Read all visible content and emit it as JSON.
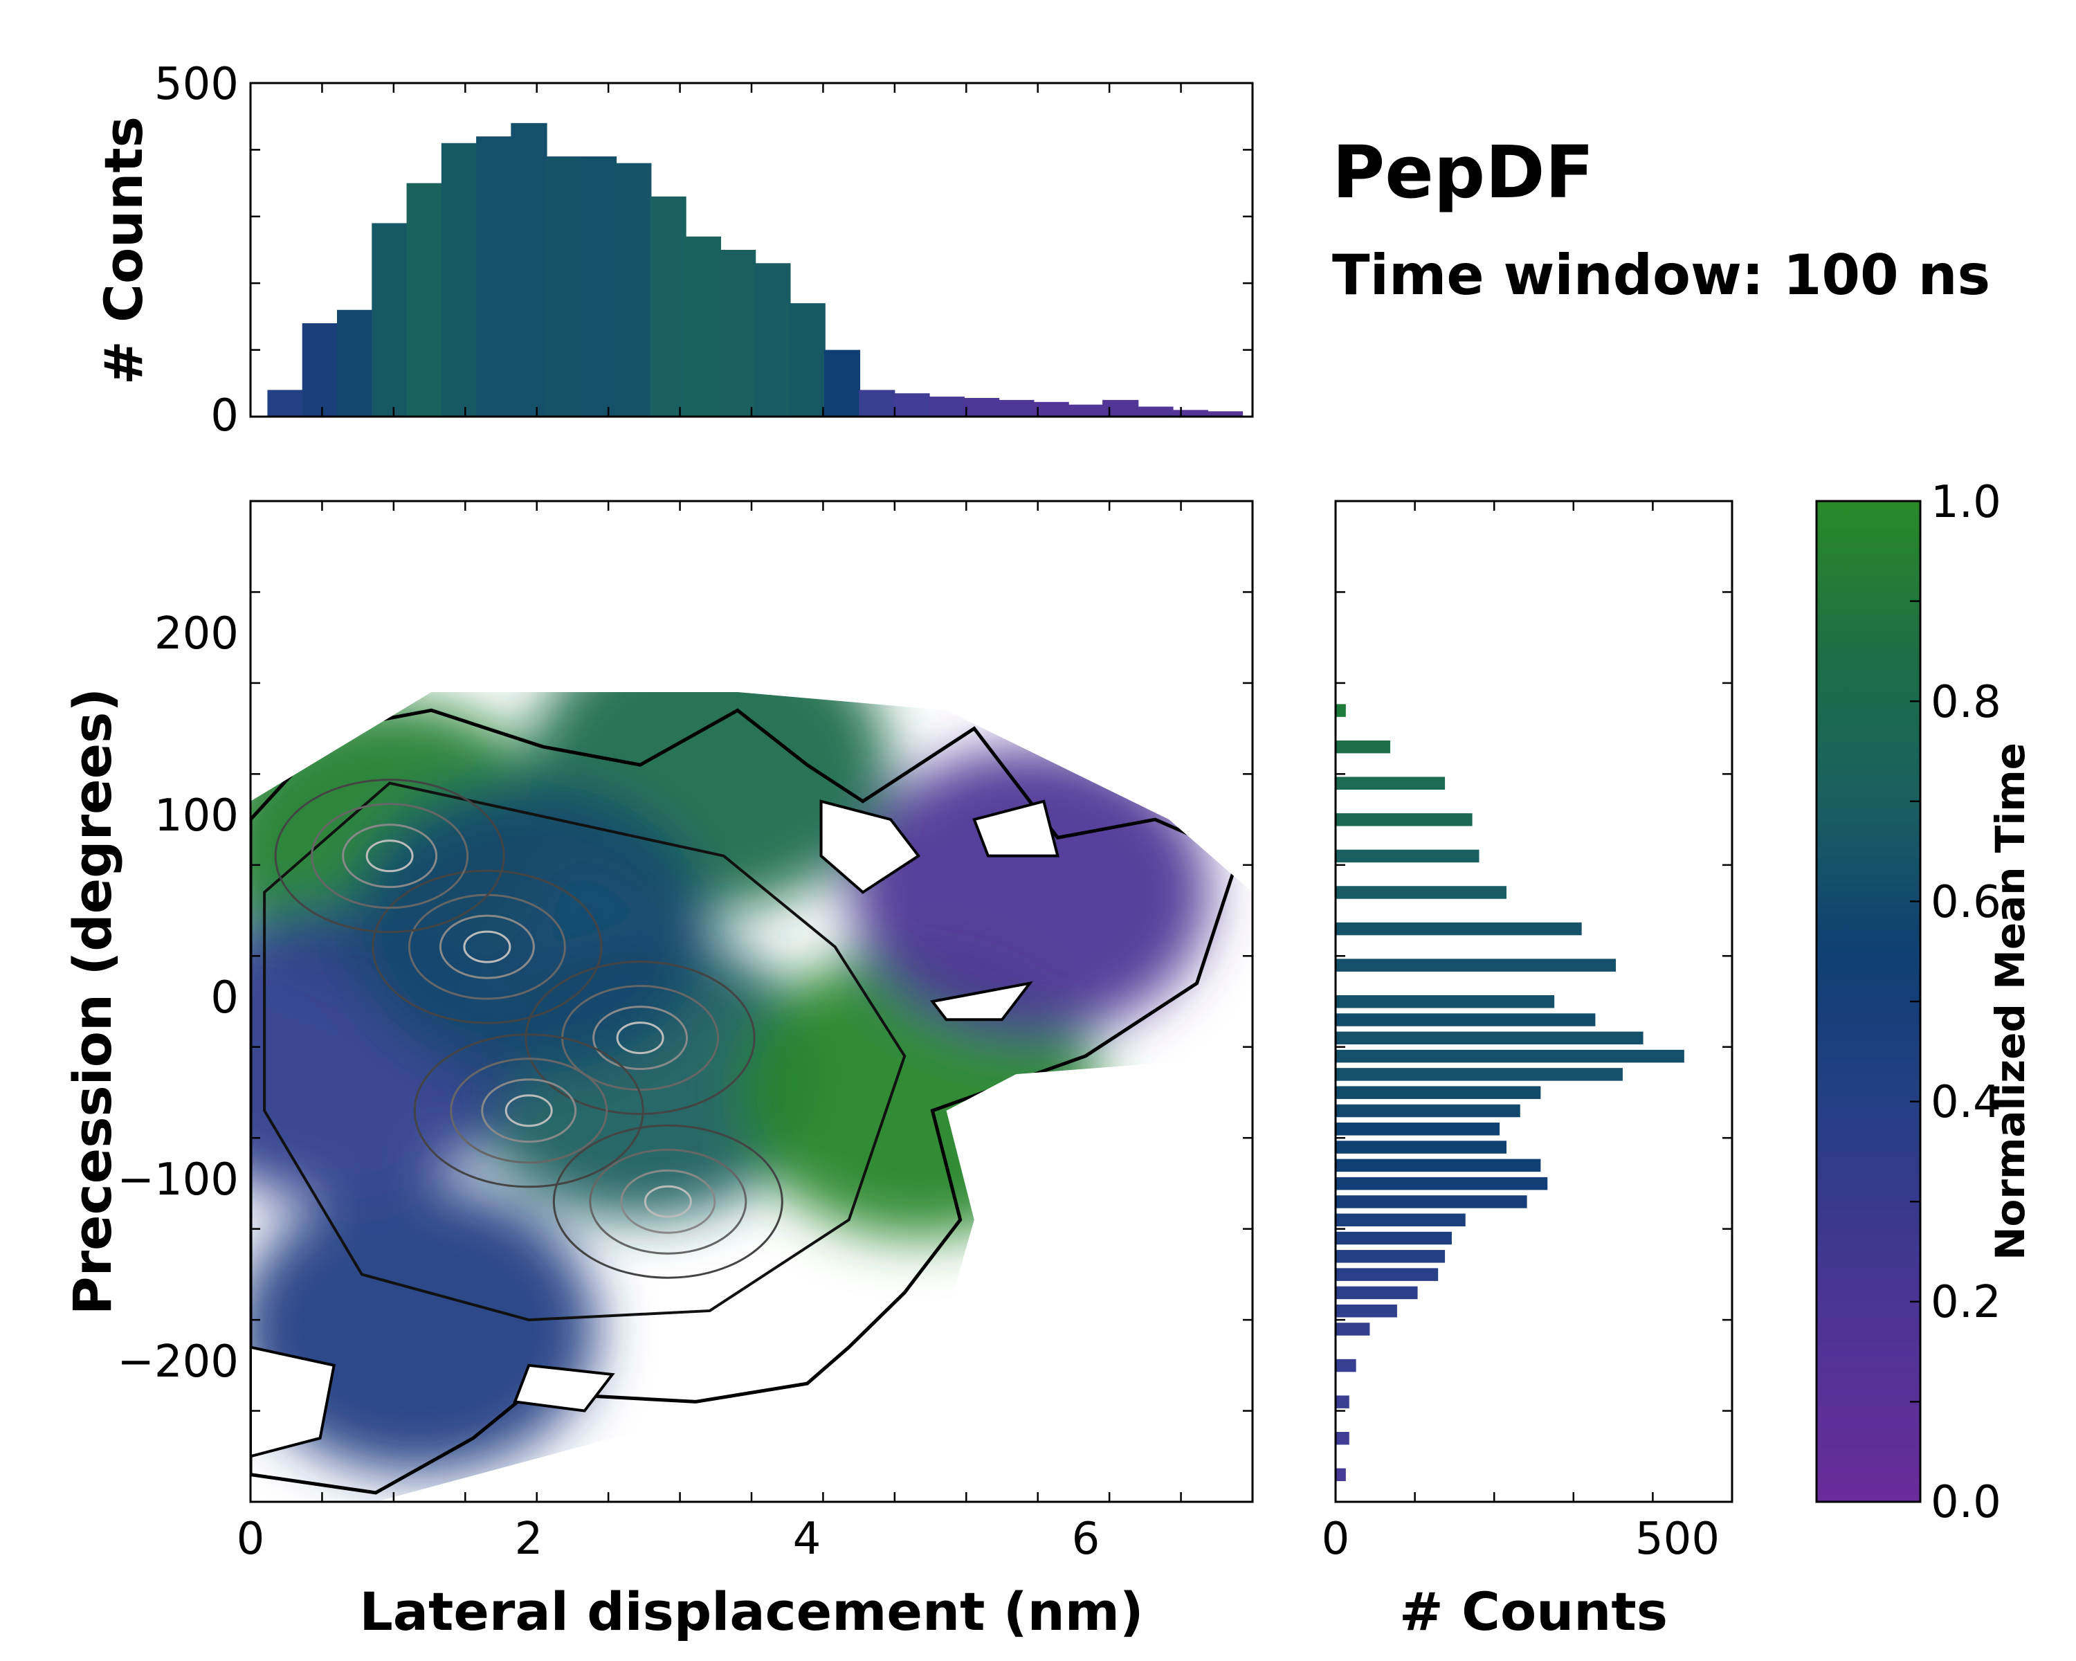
{
  "chart_data": [
    {
      "id": "top_histogram",
      "type": "bar",
      "description_axis": "x",
      "xlim": [
        0,
        7.2
      ],
      "ylim": [
        0,
        500
      ],
      "ylabel": "# Counts",
      "yticks": [
        "0",
        "500"
      ],
      "bin_centers": [
        0.25,
        0.5,
        0.75,
        1.0,
        1.25,
        1.5,
        1.75,
        2.0,
        2.25,
        2.5,
        2.75,
        3.0,
        3.25,
        3.5,
        3.75,
        4.0,
        4.25,
        4.5,
        4.75,
        5.0,
        5.25,
        5.5,
        5.75,
        6.0,
        6.25,
        6.5,
        6.75,
        7.0
      ],
      "values": [
        40,
        140,
        160,
        290,
        350,
        410,
        420,
        440,
        390,
        390,
        380,
        330,
        270,
        250,
        230,
        170,
        100,
        40,
        35,
        30,
        28,
        25,
        22,
        18,
        25,
        15,
        10,
        8
      ],
      "color_by_normalized_time": [
        0.3,
        0.35,
        0.45,
        0.55,
        0.62,
        0.55,
        0.5,
        0.5,
        0.52,
        0.5,
        0.52,
        0.6,
        0.62,
        0.6,
        0.58,
        0.55,
        0.4,
        0.2,
        0.18,
        0.15,
        0.12,
        0.12,
        0.1,
        0.1,
        0.1,
        0.1,
        0.08,
        0.08
      ]
    },
    {
      "id": "right_histogram",
      "type": "bar",
      "orientation": "horizontal",
      "xlim": [
        0,
        580
      ],
      "ylim": [
        -275,
        275
      ],
      "xlabel": "# Counts",
      "xticks": [
        "0",
        "500"
      ],
      "bin_centers": [
        160,
        140,
        120,
        100,
        80,
        60,
        40,
        20,
        0,
        -10,
        -20,
        -30,
        -40,
        -50,
        -60,
        -70,
        -80,
        -90,
        -100,
        -110,
        -120,
        -130,
        -140,
        -150,
        -160,
        -170,
        -180,
        -200,
        -220,
        -240,
        -260
      ],
      "values": [
        15,
        80,
        160,
        200,
        210,
        250,
        360,
        410,
        320,
        380,
        450,
        510,
        420,
        300,
        270,
        240,
        250,
        300,
        310,
        280,
        190,
        170,
        160,
        150,
        120,
        90,
        50,
        30,
        20,
        20,
        15
      ],
      "color_by_normalized_time": [
        0.8,
        0.72,
        0.68,
        0.66,
        0.6,
        0.58,
        0.52,
        0.5,
        0.5,
        0.48,
        0.5,
        0.5,
        0.5,
        0.48,
        0.45,
        0.42,
        0.42,
        0.4,
        0.38,
        0.36,
        0.34,
        0.32,
        0.3,
        0.28,
        0.26,
        0.25,
        0.24,
        0.22,
        0.2,
        0.18,
        0.15
      ]
    },
    {
      "id": "main_heatmap",
      "type": "heatmap",
      "title": "PepDF",
      "subtitle": "Time window: 100 ns",
      "xlabel": "Lateral displacement (nm)",
      "ylabel": "Precession (degrees)",
      "xlim": [
        0,
        7.2
      ],
      "ylim": [
        -275,
        275
      ],
      "xticks": [
        "0",
        "2",
        "4",
        "6"
      ],
      "yticks": [
        "200",
        "100",
        "0",
        "−100",
        "−200"
      ],
      "regions_normalized_time": [
        {
          "x": 1.0,
          "y": 85,
          "value": 0.88
        },
        {
          "x": 3.3,
          "y": 130,
          "value": 0.7
        },
        {
          "x": 2.8,
          "y": -40,
          "value": 0.6
        },
        {
          "x": 4.8,
          "y": -50,
          "value": 0.95
        },
        {
          "x": 5.6,
          "y": 60,
          "value": 0.12
        },
        {
          "x": 1.2,
          "y": -180,
          "value": 0.3
        },
        {
          "x": 0.6,
          "y": -30,
          "value": 0.25
        },
        {
          "x": 2.0,
          "y": 40,
          "value": 0.45
        }
      ],
      "density_peaks": [
        {
          "x": 1.7,
          "y": 30
        },
        {
          "x": 2.8,
          "y": -20
        },
        {
          "x": 2.0,
          "y": -60
        },
        {
          "x": 3.0,
          "y": -110
        },
        {
          "x": 1.0,
          "y": 80
        }
      ]
    }
  ],
  "colorbar": {
    "label": "Normalized Mean Time",
    "ticks": [
      "0.0",
      "0.2",
      "0.4",
      "0.6",
      "0.8",
      "1.0"
    ],
    "colors": [
      "#6a2c9a",
      "#3a3f94",
      "#0f3f73",
      "#1a6060",
      "#1c7a3a",
      "#2a8a28"
    ]
  }
}
